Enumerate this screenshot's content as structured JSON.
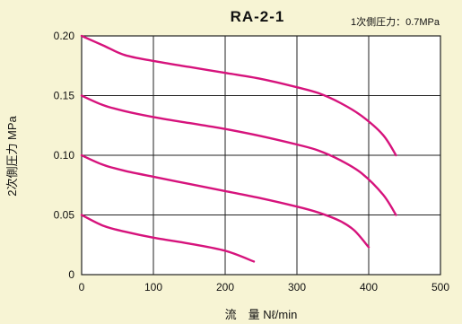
{
  "chart_data": {
    "type": "line",
    "title": "RA-2-1",
    "annotation": "1次側圧力：0.7MPa",
    "xlabel": "流　量 Nℓ/min",
    "ylabel": "2次側圧力 MPa",
    "xlim": [
      0,
      500
    ],
    "ylim": [
      0,
      0.2
    ],
    "x_ticks": [
      0,
      100,
      200,
      300,
      400,
      500
    ],
    "x_tick_labels": [
      "0",
      "100",
      "200",
      "300",
      "400",
      "500"
    ],
    "y_ticks": [
      0,
      0.05,
      0.1,
      0.15,
      0.2
    ],
    "y_tick_labels": [
      "0",
      "0.05",
      "0.10",
      "0.15",
      "0.20"
    ],
    "grid": true,
    "line_color": "#d6137c",
    "background_color": "#f7f4d4",
    "series": [
      {
        "x": [
          0,
          30,
          60,
          100,
          150,
          200,
          250,
          300,
          330,
          360,
          390,
          420,
          438
        ],
        "y": [
          0.2,
          0.192,
          0.184,
          0.179,
          0.174,
          0.169,
          0.164,
          0.157,
          0.152,
          0.144,
          0.133,
          0.117,
          0.1
        ]
      },
      {
        "x": [
          0,
          30,
          60,
          100,
          150,
          200,
          250,
          300,
          330,
          360,
          390,
          420,
          438
        ],
        "y": [
          0.15,
          0.142,
          0.137,
          0.132,
          0.127,
          0.122,
          0.116,
          0.109,
          0.104,
          0.096,
          0.085,
          0.067,
          0.05
        ]
      },
      {
        "x": [
          0,
          30,
          60,
          100,
          150,
          200,
          250,
          300,
          330,
          360,
          380,
          400
        ],
        "y": [
          0.1,
          0.092,
          0.087,
          0.082,
          0.076,
          0.07,
          0.064,
          0.057,
          0.052,
          0.045,
          0.037,
          0.023
        ]
      },
      {
        "x": [
          0,
          30,
          60,
          100,
          150,
          200,
          240
        ],
        "y": [
          0.05,
          0.041,
          0.036,
          0.031,
          0.026,
          0.02,
          0.011
        ]
      }
    ]
  }
}
